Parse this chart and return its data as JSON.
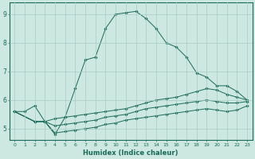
{
  "xlabel": "Humidex (Indice chaleur)",
  "bg_color": "#cde8e0",
  "grid_color": "#a8ccc4",
  "line_color": "#1a6b5a",
  "xlim": [
    -0.5,
    23.5
  ],
  "ylim": [
    4.6,
    9.4
  ],
  "yticks": [
    5,
    6,
    7,
    8,
    9
  ],
  "xticks": [
    0,
    1,
    2,
    3,
    4,
    5,
    6,
    7,
    8,
    9,
    10,
    11,
    12,
    13,
    14,
    15,
    16,
    17,
    18,
    19,
    20,
    21,
    22,
    23
  ],
  "lines": [
    {
      "x": [
        0,
        1,
        2,
        3,
        4,
        5,
        6,
        7,
        8,
        9,
        10,
        11,
        12,
        13,
        14,
        15,
        16,
        17,
        18,
        19,
        20,
        21,
        22,
        23
      ],
      "y": [
        5.6,
        5.6,
        5.8,
        5.25,
        4.8,
        5.4,
        6.4,
        7.4,
        7.5,
        8.5,
        9.0,
        9.05,
        9.1,
        8.85,
        8.5,
        8.0,
        7.85,
        7.5,
        6.95,
        6.8,
        6.5,
        6.5,
        6.3,
        6.0
      ]
    },
    {
      "x": [
        0,
        2,
        3,
        4,
        5,
        6,
        7,
        8,
        9,
        10,
        11,
        12,
        13,
        14,
        15,
        16,
        17,
        18,
        19,
        20,
        21,
        22,
        23
      ],
      "y": [
        5.6,
        5.25,
        5.25,
        5.35,
        5.4,
        5.45,
        5.5,
        5.55,
        5.6,
        5.65,
        5.7,
        5.8,
        5.9,
        6.0,
        6.05,
        6.1,
        6.2,
        6.3,
        6.4,
        6.35,
        6.2,
        6.1,
        6.0
      ]
    },
    {
      "x": [
        0,
        2,
        3,
        4,
        5,
        6,
        7,
        8,
        9,
        10,
        11,
        12,
        13,
        14,
        15,
        16,
        17,
        18,
        19,
        20,
        21,
        22,
        23
      ],
      "y": [
        5.6,
        5.25,
        5.25,
        5.1,
        5.15,
        5.2,
        5.25,
        5.3,
        5.4,
        5.45,
        5.5,
        5.6,
        5.7,
        5.75,
        5.8,
        5.85,
        5.9,
        5.95,
        6.0,
        5.95,
        5.9,
        5.9,
        5.95
      ]
    },
    {
      "x": [
        0,
        2,
        3,
        4,
        5,
        6,
        7,
        8,
        9,
        10,
        11,
        12,
        13,
        14,
        15,
        16,
        17,
        18,
        19,
        20,
        21,
        22,
        23
      ],
      "y": [
        5.6,
        5.25,
        5.25,
        4.85,
        4.9,
        4.95,
        5.0,
        5.05,
        5.15,
        5.2,
        5.3,
        5.35,
        5.4,
        5.45,
        5.5,
        5.55,
        5.6,
        5.65,
        5.7,
        5.65,
        5.6,
        5.65,
        5.8
      ]
    }
  ]
}
